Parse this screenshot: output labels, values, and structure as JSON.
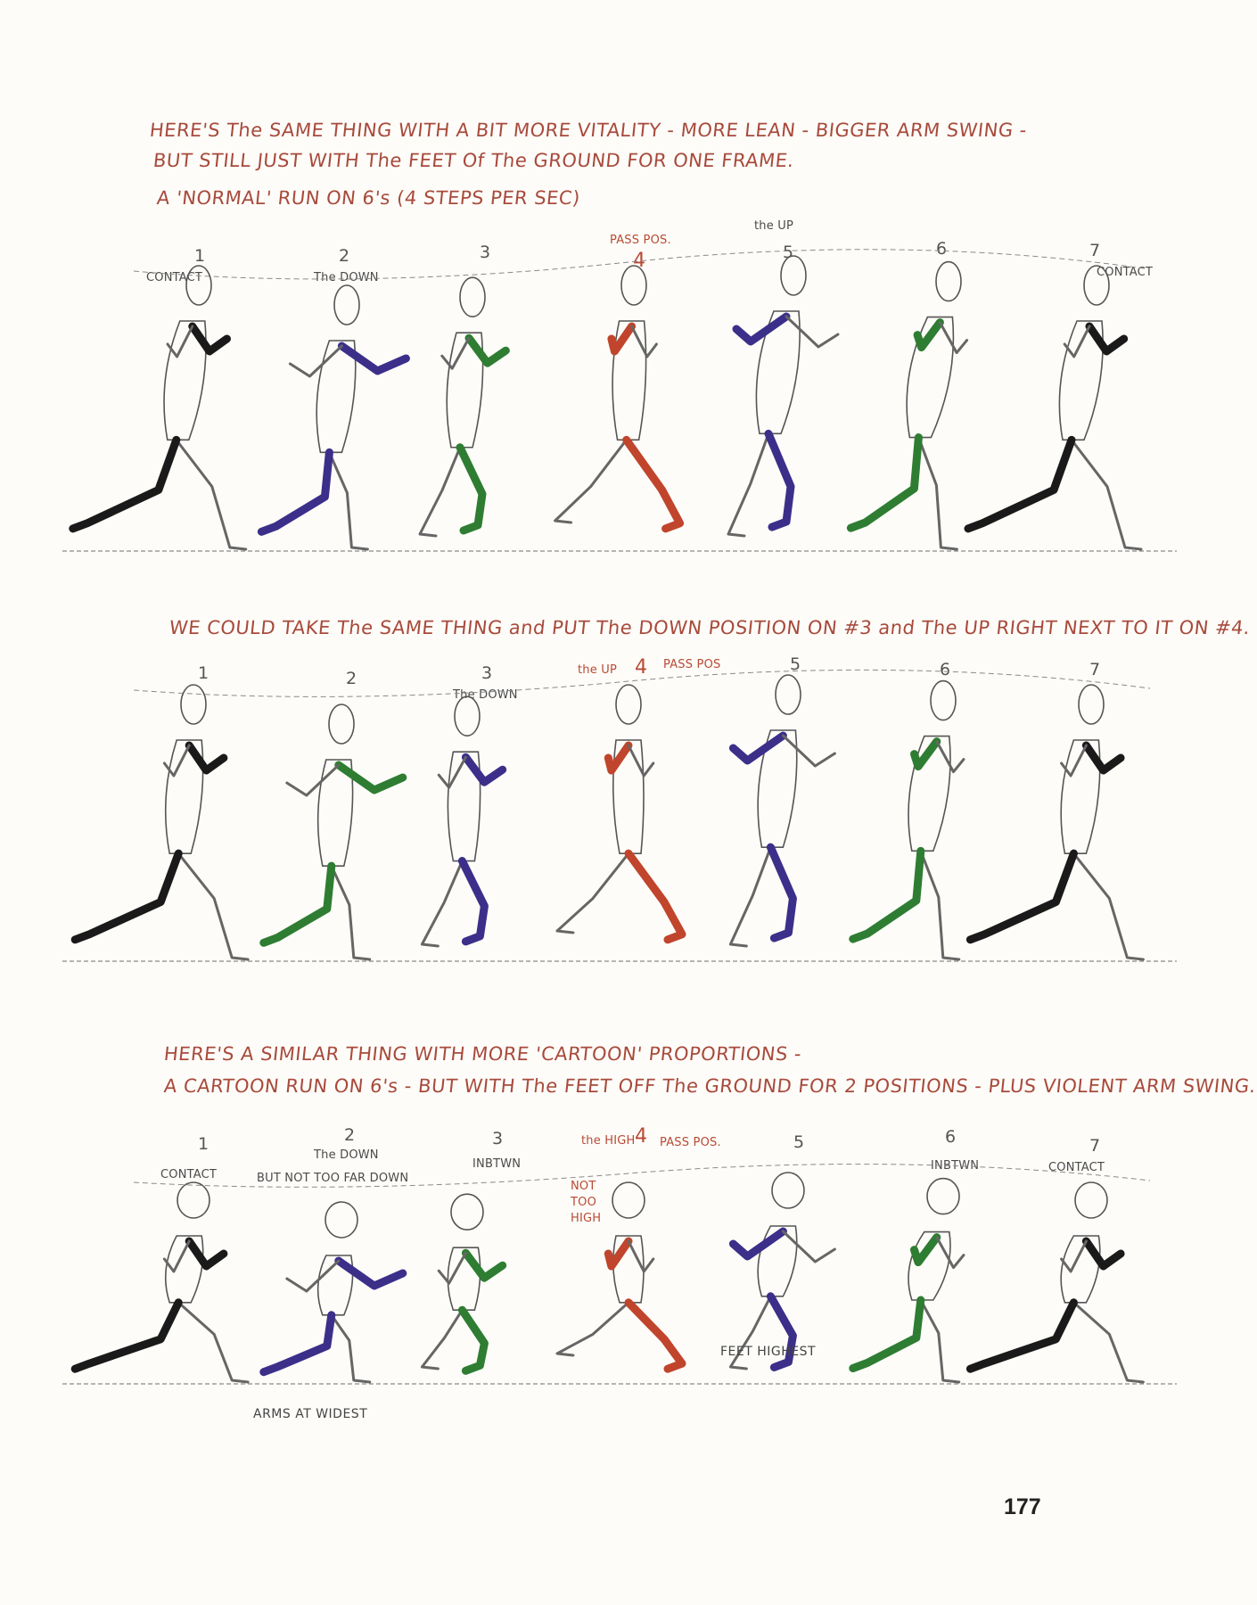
{
  "section1": {
    "intro": [
      "HERE'S The SAME THING WITH A BIT MORE VITALITY - MORE LEAN - BIGGER ARM SWING -",
      "BUT STILL JUST WITH The FEET Of The GROUND FOR ONE FRAME.",
      "A 'NORMAL' RUN ON 6's (4 STEPS PER SEC)"
    ],
    "frames": [
      {
        "number": "1",
        "label": "CONTACT",
        "color": "#1a1a1a"
      },
      {
        "number": "2",
        "label": "The DOWN",
        "color": "#3b2f8a"
      },
      {
        "number": "3",
        "label": "",
        "color": "#2e7d32"
      },
      {
        "number": "4",
        "label": "PASS POS.",
        "color": "#c0452c"
      },
      {
        "number": "5",
        "label": "the UP",
        "color": "#3b2f8a"
      },
      {
        "number": "6",
        "label": "",
        "color": "#2e7d32"
      },
      {
        "number": "7",
        "label": "CONTACT",
        "color": "#1a1a1a"
      }
    ]
  },
  "section2": {
    "intro": [
      "WE COULD TAKE The SAME THING and PUT The DOWN POSITION ON #3 and The UP RIGHT NEXT TO IT ON #4."
    ],
    "frames": [
      {
        "number": "1",
        "label": "",
        "color": "#1a1a1a"
      },
      {
        "number": "2",
        "label": "",
        "color": "#2e7d32"
      },
      {
        "number": "3",
        "label": "The DOWN",
        "color": "#3b2f8a"
      },
      {
        "number": "4",
        "label": "the UP",
        "label2": "PASS POS",
        "color": "#c0452c"
      },
      {
        "number": "5",
        "label": "",
        "color": "#3b2f8a"
      },
      {
        "number": "6",
        "label": "",
        "color": "#2e7d32"
      },
      {
        "number": "7",
        "label": "",
        "color": "#1a1a1a"
      }
    ]
  },
  "section3": {
    "intro": [
      "HERE'S A SIMILAR THING WITH MORE 'CARTOON' PROPORTIONS -",
      "A CARTOON RUN ON 6's - BUT WITH The FEET OFF The GROUND FOR 2 POSITIONS - PLUS VIOLENT ARM SWING."
    ],
    "frames": [
      {
        "number": "1",
        "label": "CONTACT",
        "color": "#1a1a1a"
      },
      {
        "number": "2",
        "label": "The DOWN",
        "label2": "BUT NOT TOO FAR DOWN",
        "color": "#3b2f8a"
      },
      {
        "number": "3",
        "label": "INBTWN",
        "color": "#2e7d32"
      },
      {
        "number": "4",
        "label": "the HIGH",
        "label2": "NOT TOO HIGH",
        "label3": "PASS POS.",
        "color": "#c0452c"
      },
      {
        "number": "5",
        "label": "",
        "color": "#3b2f8a"
      },
      {
        "number": "6",
        "label": "INBTWN",
        "color": "#2e7d32"
      },
      {
        "number": "7",
        "label": "CONTACT",
        "color": "#1a1a1a"
      }
    ],
    "notes": {
      "feet_highest": "FEET HIGHEST",
      "arms_at_widest": "ARMS AT WIDEST"
    }
  },
  "page_number": "177",
  "colors": {
    "ink_red": "#a84a3c",
    "black": "#1a1a1a",
    "purple": "#3b2f8a",
    "green": "#2e7d32",
    "red": "#c0452c",
    "paper": "#fdfcf8"
  }
}
